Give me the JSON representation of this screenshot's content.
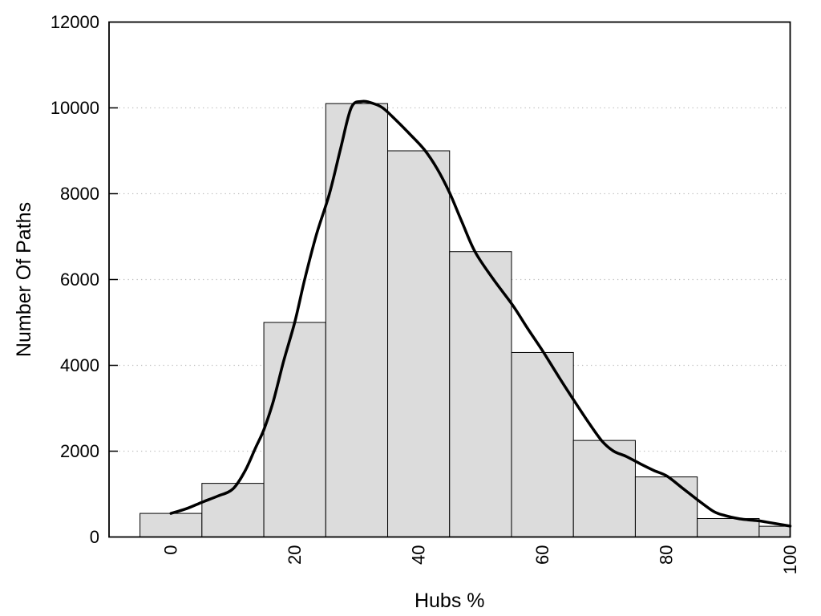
{
  "figure": {
    "background": "#ffffff"
  },
  "chart_data": {
    "type": "bar",
    "subtype": "histogram-with-density-curve",
    "title": "",
    "xlabel": "Hubs %",
    "ylabel": "Number Of Paths",
    "xlim": [
      -10,
      100
    ],
    "ylim": [
      0,
      12000
    ],
    "xticks": [
      0,
      20,
      40,
      60,
      80,
      100
    ],
    "yticks": [
      0,
      2000,
      4000,
      6000,
      8000,
      10000,
      12000
    ],
    "grid": "horizontal-dotted",
    "legend": "none",
    "bin_width": 10,
    "categories": [
      0,
      10,
      20,
      30,
      40,
      50,
      60,
      70,
      80,
      90,
      100
    ],
    "values": [
      550,
      1250,
      5000,
      10100,
      9000,
      6650,
      4300,
      2250,
      1400,
      430,
      250
    ],
    "series": [
      {
        "name": "density-curve",
        "type": "line",
        "points": [
          [
            0,
            550
          ],
          [
            2.5,
            660
          ],
          [
            5,
            810
          ],
          [
            7.5,
            950
          ],
          [
            10,
            1120
          ],
          [
            12,
            1550
          ],
          [
            13.6,
            2060
          ],
          [
            15,
            2500
          ],
          [
            16.5,
            3150
          ],
          [
            18.2,
            4100
          ],
          [
            20,
            5010
          ],
          [
            21.6,
            6000
          ],
          [
            23.5,
            7050
          ],
          [
            25.6,
            8000
          ],
          [
            27.4,
            9050
          ],
          [
            29.1,
            10000
          ],
          [
            30.8,
            10150
          ],
          [
            32.5,
            10110
          ],
          [
            34.2,
            10000
          ],
          [
            36.3,
            9720
          ],
          [
            38.5,
            9400
          ],
          [
            40.9,
            9030
          ],
          [
            43,
            8580
          ],
          [
            45,
            8020
          ],
          [
            47,
            7340
          ],
          [
            49.1,
            6650
          ],
          [
            52,
            6020
          ],
          [
            55.2,
            5400
          ],
          [
            57.6,
            4860
          ],
          [
            60.1,
            4320
          ],
          [
            62.6,
            3740
          ],
          [
            65.1,
            3180
          ],
          [
            67.4,
            2680
          ],
          [
            69.6,
            2240
          ],
          [
            71.5,
            2000
          ],
          [
            73.5,
            1880
          ],
          [
            76,
            1690
          ],
          [
            78,
            1550
          ],
          [
            80.1,
            1420
          ],
          [
            82.6,
            1140
          ],
          [
            85.1,
            860
          ],
          [
            87.7,
            590
          ],
          [
            89.5,
            500
          ],
          [
            91.6,
            430
          ],
          [
            93.2,
            400
          ],
          [
            95,
            375
          ],
          [
            97.5,
            315
          ],
          [
            100,
            255
          ]
        ]
      }
    ],
    "colors": {
      "bar_fill": "#dcdcdc",
      "bar_stroke": "#000000",
      "curve": "#000000",
      "grid": "#bfbfbf",
      "axis": "#000000",
      "text": "#000000",
      "background": "#ffffff"
    }
  }
}
